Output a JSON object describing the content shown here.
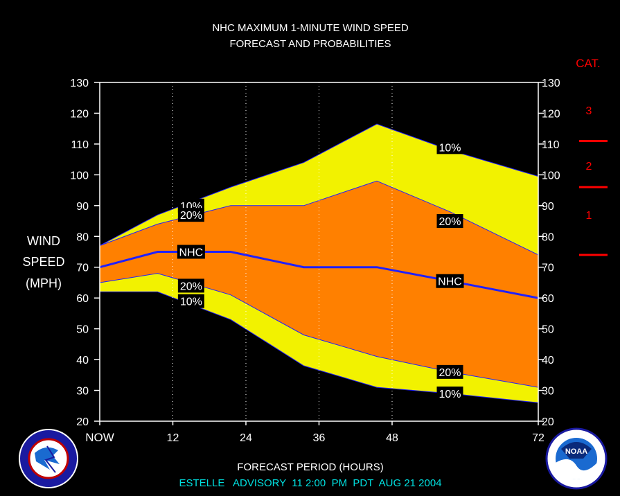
{
  "chart_data": {
    "type": "area",
    "title": "NHC MAXIMUM 1-MINUTE WIND SPEED",
    "subtitle": "FORECAST AND PROBABILITIES",
    "ylabel_lines": [
      "WIND",
      "SPEED",
      "(MPH)"
    ],
    "xlabel": "FORECAST PERIOD (HOURS)",
    "footer": "ESTELLE   ADVISORY  11 2:00  PM  PDT  AUG 21 2004",
    "ylim": [
      20,
      130
    ],
    "y_ticks": [
      20,
      30,
      40,
      50,
      60,
      70,
      80,
      90,
      100,
      110,
      120,
      130
    ],
    "xlim": [
      0,
      72
    ],
    "x_ticks": [
      {
        "value": 0,
        "label": "NOW"
      },
      {
        "value": 12,
        "label": "12"
      },
      {
        "value": 24,
        "label": "24"
      },
      {
        "value": 36,
        "label": "36"
      },
      {
        "value": 48,
        "label": "48"
      },
      {
        "value": 72,
        "label": "72"
      }
    ],
    "x_gridlines": [
      12,
      24,
      36,
      48
    ],
    "x": [
      0,
      9.5,
      21.5,
      33.5,
      45.5,
      57.5,
      69.5
    ],
    "series": [
      {
        "name": "10%",
        "band": "upper",
        "values": [
          77,
          87,
          96,
          104,
          116.5,
          108,
          99.5
        ]
      },
      {
        "name": "20%",
        "band": "upper",
        "values": [
          77,
          84,
          90,
          90,
          98,
          88,
          74
        ]
      },
      {
        "name": "NHC",
        "values": [
          70,
          75,
          75,
          70,
          70,
          65.5,
          60
        ]
      },
      {
        "name": "20%",
        "band": "lower",
        "values": [
          65,
          68,
          61,
          48,
          41,
          36,
          31
        ]
      },
      {
        "name": "10%",
        "band": "lower",
        "values": [
          62,
          62,
          53,
          38,
          31,
          29,
          26
        ]
      }
    ],
    "label_positions": [
      {
        "text": "10%",
        "x": 15,
        "y": 90
      },
      {
        "text": "20%",
        "x": 15,
        "y": 87
      },
      {
        "text": "NHC",
        "x": 15,
        "y": 75
      },
      {
        "text": "20%",
        "x": 15,
        "y": 64
      },
      {
        "text": "10%",
        "x": 15,
        "y": 59
      },
      {
        "text": "10%",
        "x": 57.5,
        "y": 109
      },
      {
        "text": "20%",
        "x": 57.5,
        "y": 85
      },
      {
        "text": "NHC",
        "x": 57.5,
        "y": 65.5
      },
      {
        "text": "20%",
        "x": 57.5,
        "y": 36
      },
      {
        "text": "10%",
        "x": 57.5,
        "y": 29
      }
    ],
    "category_scale": {
      "title": "CAT.",
      "categories": [
        {
          "label": "3",
          "y": 121
        },
        {
          "label": "2",
          "y": 103
        },
        {
          "label": "1",
          "y": 87
        }
      ],
      "boundaries": [
        111,
        96,
        74
      ]
    },
    "colors": {
      "band_10": "#f2f200",
      "band_20": "#ff8000",
      "nhc_line": "#2020ff",
      "category": "#ff0000",
      "footer": "#00e0e0",
      "text": "#ffffff",
      "background": "#000000"
    }
  }
}
